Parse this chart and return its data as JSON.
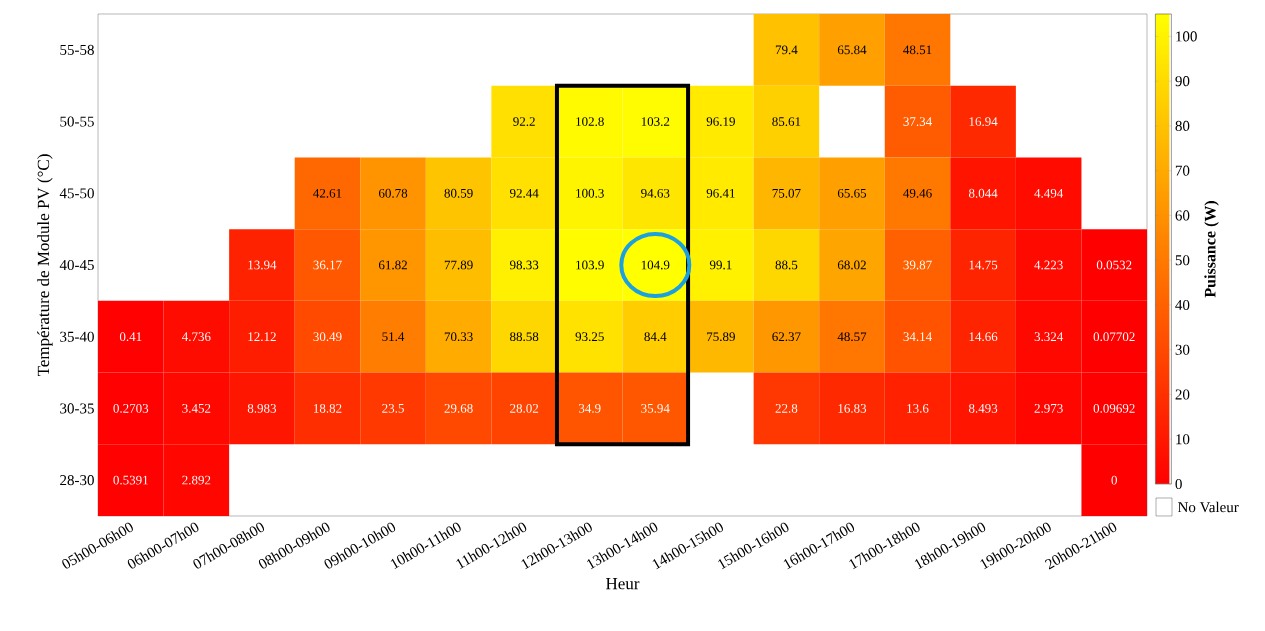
{
  "chart_data": {
    "type": "heatmap",
    "xlabel": "Heur",
    "ylabel": "Température de Module PV (°C)",
    "clabel": "Puissance (W)",
    "categories": [
      "05h00-06h00",
      "06h00-07h00",
      "07h00-08h00",
      "08h00-09h00",
      "09h00-10h00",
      "10h00-11h00",
      "11h00-12h00",
      "12h00-13h00",
      "13h00-14h00",
      "14h00-15h00",
      "15h00-16h00",
      "16h00-17h00",
      "17h00-18h00",
      "18h00-19h00",
      "19h00-20h00",
      "20h00-21h00"
    ],
    "y_categories": [
      "55-58",
      "50-55",
      "45-50",
      "40-45",
      "35-40",
      "30-35",
      "28-30"
    ],
    "cells": [
      [
        null,
        null,
        null,
        null,
        null,
        null,
        null,
        null,
        null,
        null,
        79.4,
        65.84,
        48.51,
        null,
        null,
        null
      ],
      [
        null,
        null,
        null,
        null,
        null,
        null,
        92.2,
        102.8,
        103.2,
        96.19,
        85.61,
        null,
        37.34,
        16.94,
        null,
        null
      ],
      [
        null,
        null,
        null,
        42.61,
        60.78,
        80.59,
        92.44,
        100.3,
        94.63,
        96.41,
        75.07,
        65.65,
        49.46,
        8.044,
        4.494,
        null
      ],
      [
        null,
        null,
        13.94,
        36.17,
        61.82,
        77.89,
        98.33,
        103.9,
        104.9,
        99.1,
        88.5,
        68.02,
        39.87,
        14.75,
        4.223,
        0.0532
      ],
      [
        0.41,
        4.736,
        12.12,
        30.49,
        51.4,
        70.33,
        88.58,
        93.25,
        84.4,
        75.89,
        62.37,
        48.57,
        34.14,
        14.66,
        3.324,
        0.07702
      ],
      [
        0.2703,
        3.452,
        8.983,
        18.82,
        23.5,
        29.68,
        28.02,
        34.9,
        35.94,
        null,
        22.8,
        16.83,
        13.6,
        8.493,
        2.973,
        0.09692
      ],
      [
        0.5391,
        2.892,
        null,
        null,
        null,
        null,
        null,
        null,
        null,
        null,
        null,
        null,
        null,
        null,
        null,
        0
      ]
    ],
    "clim": [
      0,
      105
    ],
    "cticks": [
      0,
      10,
      20,
      30,
      40,
      50,
      60,
      70,
      80,
      90,
      100
    ],
    "data_labels": true,
    "annotations": [
      "No Valeur"
    ]
  }
}
